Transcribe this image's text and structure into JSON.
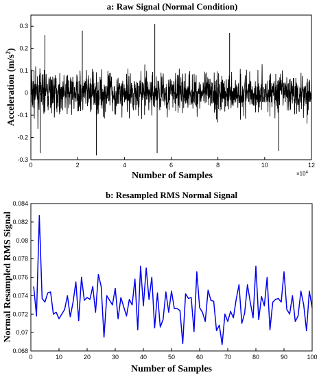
{
  "charts": [
    {
      "type": "line",
      "title": "a:  Raw  Signal (Normal Condition)",
      "xlabel": "Number of Samples",
      "ylabel_main": "Acceleration (m/s",
      "ylabel_sup": "2",
      "ylabel_tail": ")",
      "xlim": [
        0,
        120000
      ],
      "ylim": [
        -0.3,
        0.35
      ],
      "x_tick_labels": [
        "0",
        "2",
        "4",
        "6",
        "8",
        "10",
        "12"
      ],
      "x_multiplier_base": "×10",
      "x_multiplier_exp": "4",
      "y_tick_labels": [
        "-0.3",
        "-0.2",
        "-0.1",
        "0",
        "0.1",
        "0.2",
        "0.3"
      ],
      "grid": false,
      "line_color": "#000000"
    },
    {
      "type": "line",
      "title": "b: Resampled RMS Normal Signal",
      "xlabel": "Number of Samples",
      "ylabel": "Normal Resampled RMS Signal",
      "xlim": [
        0,
        100
      ],
      "ylim": [
        0.068,
        0.084
      ],
      "x_tick_labels": [
        "0",
        "10",
        "20",
        "30",
        "40",
        "50",
        "60",
        "70",
        "80",
        "90",
        "100"
      ],
      "y_tick_labels": [
        "0.068",
        "0.07",
        "0.072",
        "0.074",
        "0.076",
        "0.078",
        "0.08",
        "0.082",
        "0.084"
      ],
      "grid": false,
      "line_color": "#0000ee"
    }
  ],
  "chart_data": [
    {
      "type": "line",
      "title": "a:  Raw  Signal (Normal Condition)",
      "xlabel": "Number of Samples",
      "ylabel": "Acceleration (m/s^2)",
      "xlim": [
        0,
        120000
      ],
      "ylim": [
        -0.3,
        0.35
      ],
      "series": [
        {
          "values_summary": "dense vibration signal, ~120000 samples, mostly within ±0.2, peak ≈ 0.31 at x ≈ 53000, minimum ≈ -0.28"
        }
      ],
      "peaks": [
        {
          "x": 53000,
          "y": 0.31
        },
        {
          "x": 22000,
          "y": 0.28
        },
        {
          "x": 28000,
          "y": -0.28
        },
        {
          "x": 4000,
          "y": -0.27
        },
        {
          "x": 54000,
          "y": -0.27
        },
        {
          "x": 85000,
          "y": 0.27
        },
        {
          "x": 6000,
          "y": 0.26
        },
        {
          "x": 106000,
          "y": -0.26
        }
      ]
    },
    {
      "type": "line",
      "title": "b: Resampled RMS Normal Signal",
      "xlabel": "Number of Samples",
      "ylabel": "Normal Resampled RMS Signal",
      "xlim": [
        0,
        100
      ],
      "ylim": [
        0.068,
        0.084
      ],
      "x": [
        1,
        2,
        3,
        4,
        5,
        6,
        7,
        8,
        9,
        10,
        11,
        12,
        13,
        14,
        15,
        16,
        17,
        18,
        19,
        20,
        21,
        22,
        23,
        24,
        25,
        26,
        27,
        28,
        29,
        30,
        31,
        32,
        33,
        34,
        35,
        36,
        37,
        38,
        39,
        40,
        41,
        42,
        43,
        44,
        45,
        46,
        47,
        48,
        49,
        50,
        51,
        52,
        53,
        54,
        55,
        56,
        57,
        58,
        59,
        60,
        61,
        62,
        63,
        64,
        65,
        66,
        67,
        68,
        69,
        70,
        71,
        72,
        73,
        74,
        75,
        76,
        77,
        78,
        79,
        80,
        81,
        82,
        83,
        84,
        85,
        86,
        87,
        88,
        89,
        90,
        91,
        92,
        93,
        94,
        95,
        96,
        97,
        98,
        99,
        100
      ],
      "series": [
        {
          "values": [
            0.075,
            0.0718,
            0.0827,
            0.0737,
            0.0733,
            0.0743,
            0.0744,
            0.072,
            0.0722,
            0.0715,
            0.072,
            0.0725,
            0.074,
            0.0717,
            0.0733,
            0.0755,
            0.0713,
            0.076,
            0.0735,
            0.0738,
            0.0736,
            0.075,
            0.0722,
            0.0763,
            0.075,
            0.0695,
            0.074,
            0.0735,
            0.073,
            0.0748,
            0.0715,
            0.0738,
            0.0728,
            0.0718,
            0.0736,
            0.073,
            0.0758,
            0.0703,
            0.0772,
            0.0729,
            0.077,
            0.0736,
            0.076,
            0.0705,
            0.0743,
            0.0706,
            0.0714,
            0.0744,
            0.0722,
            0.0745,
            0.0726,
            0.0726,
            0.0724,
            0.0688,
            0.0742,
            0.0737,
            0.0738,
            0.0701,
            0.0766,
            0.0727,
            0.0722,
            0.0712,
            0.0746,
            0.0735,
            0.0734,
            0.0702,
            0.0708,
            0.0687,
            0.072,
            0.0712,
            0.0723,
            0.0716,
            0.0736,
            0.0752,
            0.071,
            0.0721,
            0.0752,
            0.0733,
            0.0716,
            0.0772,
            0.0714,
            0.0739,
            0.0729,
            0.076,
            0.0703,
            0.0733,
            0.0736,
            0.0737,
            0.0733,
            0.0766,
            0.0725,
            0.072,
            0.074,
            0.0712,
            0.0718,
            0.0745,
            0.073,
            0.0702,
            0.0745,
            0.0727
          ]
        }
      ]
    }
  ]
}
